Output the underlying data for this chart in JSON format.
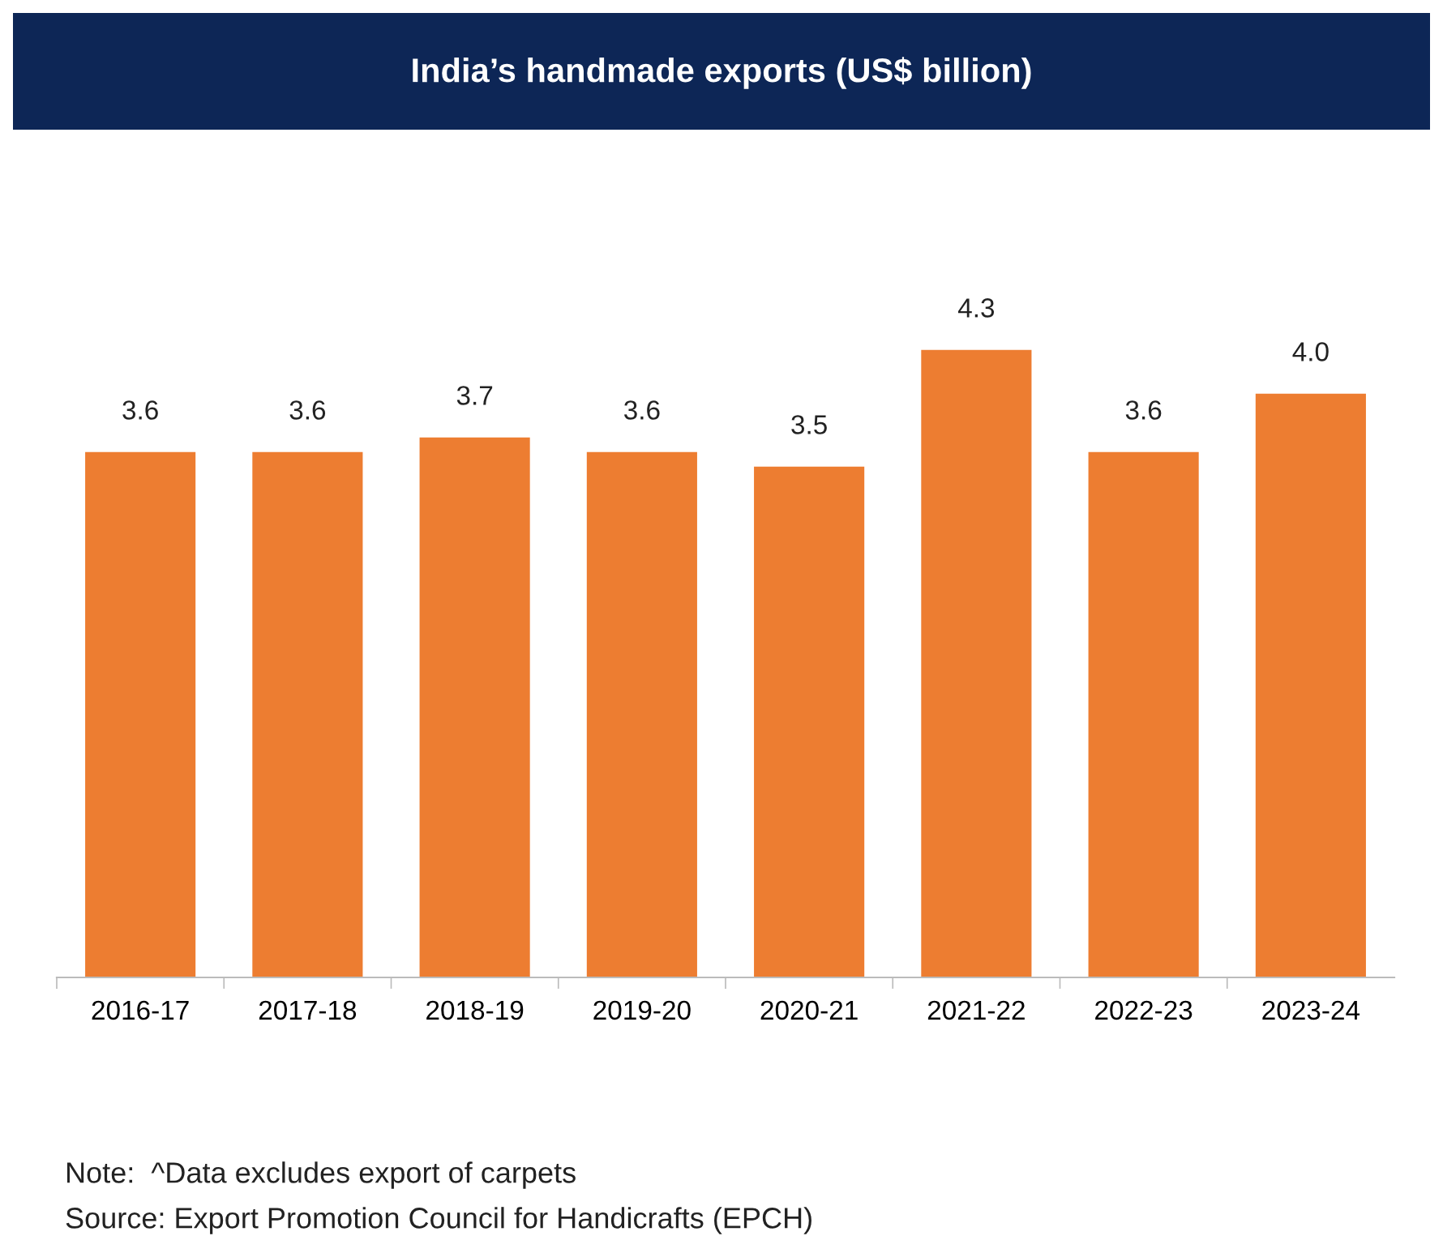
{
  "chart_data": {
    "type": "bar",
    "title": "India’s handmade exports (US$ billion)",
    "categories": [
      "2016-17",
      "2017-18",
      "2018-19",
      "2019-20",
      "2020-21",
      "2021-22",
      "2022-23",
      "2023-24"
    ],
    "values": [
      3.6,
      3.6,
      3.7,
      3.6,
      3.5,
      4.3,
      3.6,
      4.0
    ],
    "color": "#ed7d31",
    "value_labels": [
      "3.6",
      "3.6",
      "3.7",
      "3.6",
      "3.5",
      "4.3",
      "3.6",
      "4.0"
    ],
    "grid": false,
    "legend": false,
    "annotations": [
      "Note:  ^Data excludes export of carpets",
      "Source: Export Promotion Council for Handicrafts (EPCH)"
    ]
  }
}
